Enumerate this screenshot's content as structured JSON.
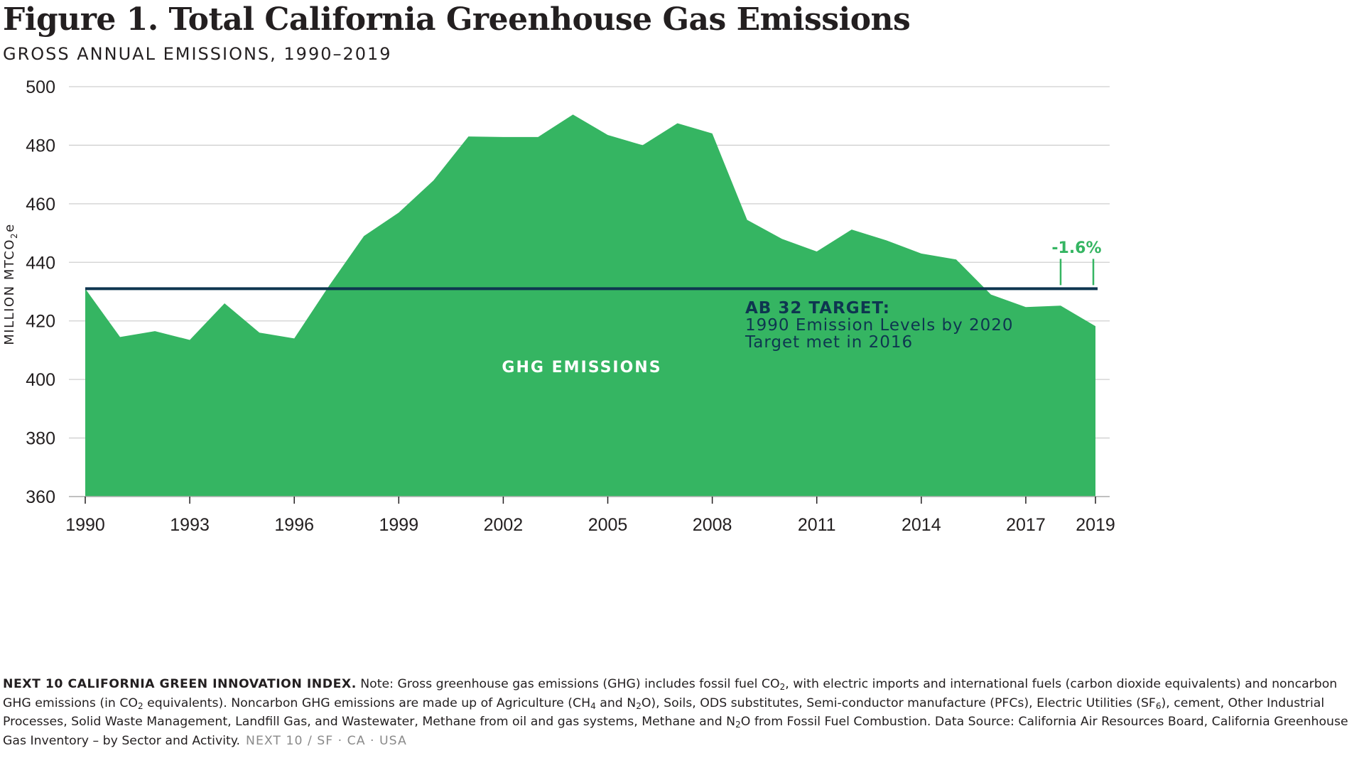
{
  "chart_data": {
    "type": "area",
    "title": "Figure 1. Total California Greenhouse Gas Emissions",
    "subtitle": "GROSS ANNUAL EMISSIONS, 1990–2019",
    "ylabel": "MILLION MTCO2e",
    "ylabel_parts": {
      "main": "MILLION MTCO",
      "sub": "2",
      "suffix": "e"
    },
    "ylim": [
      360,
      500
    ],
    "yticks": [
      360,
      380,
      400,
      420,
      440,
      460,
      480,
      500
    ],
    "xlim": [
      1990,
      2019
    ],
    "xticks": [
      1990,
      1993,
      1996,
      1999,
      2002,
      2005,
      2008,
      2011,
      2014,
      2017,
      2019
    ],
    "grid": true,
    "series": [
      {
        "color": "#35b562",
        "x": [
          1990,
          1991,
          1992,
          1993,
          1994,
          1995,
          1996,
          1997,
          1998,
          1999,
          2000,
          2001,
          2002,
          2003,
          2004,
          2005,
          2006,
          2007,
          2008,
          2009,
          2010,
          2011,
          2012,
          2013,
          2014,
          2015,
          2016,
          2017,
          2018,
          2019
        ],
        "y": [
          431.0,
          414.5,
          416.5,
          413.5,
          426.0,
          416.0,
          414.0,
          432.0,
          449.0,
          457.0,
          468.0,
          483.0,
          482.8,
          482.8,
          490.5,
          483.5,
          480.0,
          487.5,
          484.0,
          454.5,
          448.0,
          443.7,
          451.2,
          447.5,
          443.0,
          441.0,
          429.0,
          424.7,
          425.2,
          418.2
        ]
      }
    ],
    "area_label": "GHG EMISSIONS",
    "target_line": {
      "value": 431.0,
      "color": "#0e3650"
    },
    "target_annotation": {
      "heading": "AB 32 TARGET:",
      "line1": "1990 Emission Levels by 2020",
      "line2": "Target met in 2016"
    },
    "change_annotation": {
      "label": "-1.6%",
      "from_x": 2018,
      "to_x": 2019,
      "color": "#35b562"
    }
  },
  "footer": {
    "lead": "NEXT 10 CALIFORNIA GREEN INNOVATION INDEX.",
    "lines": [
      {
        "parts": [
          " Note: Gross greenhouse gas emissions (GHG) includes fossil fuel CO",
          {
            "sub": "2"
          },
          ", with electric imports and international fuels (carbon dioxide equivalents) and noncarbon"
        ]
      },
      {
        "parts": [
          "GHG emissions (in CO",
          {
            "sub": "2"
          },
          " equivalents). Noncarbon GHG emissions are made up of Agriculture (CH",
          {
            "sub": "4"
          },
          " and N",
          {
            "sub": "2"
          },
          "O), Soils, ODS substitutes, Semi-conductor manufacture (PFCs), Electric Utilities (SF",
          {
            "sub": "6"
          },
          "), cement, Other Industrial"
        ]
      },
      {
        "parts": [
          "Processes, Solid Waste Management, Landfill Gas, and Wastewater, Methane from oil and gas systems, Methane and N",
          {
            "sub": "2"
          },
          "O from Fossil Fuel Combustion. Data Source: California Air Resources Board, California Greenhouse"
        ]
      },
      {
        "parts": [
          "Gas Inventory – by Sector and Activity."
        ]
      }
    ],
    "brand": "NEXT 10 / SF · CA · USA"
  }
}
